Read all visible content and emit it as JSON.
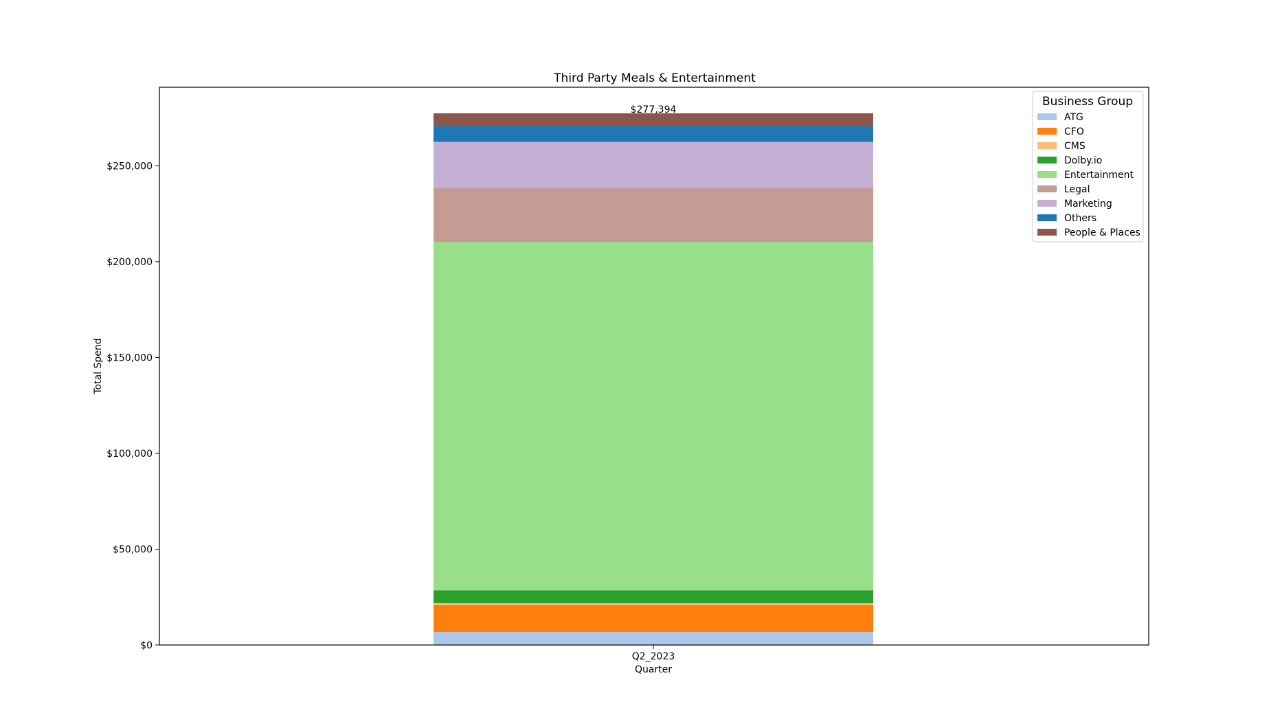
{
  "chart_data": {
    "type": "bar",
    "stacked": true,
    "title": "Third Party Meals & Entertainment",
    "xlabel": "Quarter",
    "ylabel": "Total Spend",
    "categories": [
      "Q2_2023"
    ],
    "ylim": [
      0,
      291000
    ],
    "yticks": [
      0,
      50000,
      100000,
      150000,
      200000,
      250000
    ],
    "ytick_labels": [
      "$0",
      "$50,000",
      "$100,000",
      "$150,000",
      "$200,000",
      "$250,000"
    ],
    "total_label": "$277,394",
    "legend_title": "Business Group",
    "legend_position": "top-right",
    "grid": false,
    "series": [
      {
        "name": "ATG",
        "color": "#aec7e8",
        "values": [
          6800
        ]
      },
      {
        "name": "CFO",
        "color": "#ff7f0e",
        "values": [
          14000
        ]
      },
      {
        "name": "CMS",
        "color": "#ffbb78",
        "values": [
          1000
        ]
      },
      {
        "name": "Dolby.io",
        "color": "#2ca02c",
        "values": [
          6700
        ]
      },
      {
        "name": "Entertainment",
        "color": "#98df8a",
        "values": [
          181700
        ]
      },
      {
        "name": "Legal",
        "color": "#c49c94",
        "values": [
          28300
        ]
      },
      {
        "name": "Marketing",
        "color": "#c5b0d5",
        "values": [
          24000
        ]
      },
      {
        "name": "Others",
        "color": "#1f77b4",
        "values": [
          8300
        ]
      },
      {
        "name": "People & Places",
        "color": "#8c564b",
        "values": [
          6594
        ]
      }
    ]
  }
}
